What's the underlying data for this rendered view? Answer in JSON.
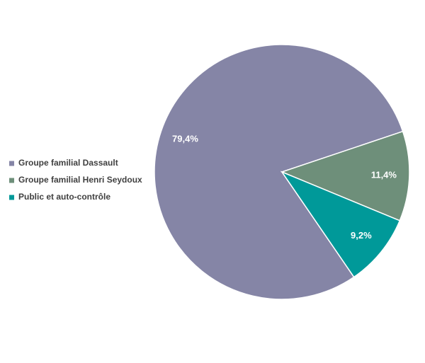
{
  "chart_data": {
    "type": "pie",
    "categories": [
      "Groupe familial Dassault",
      "Groupe familial Henri Seydoux",
      "Public et auto-contrôle"
    ],
    "values": [
      79.4,
      11.4,
      9.2
    ],
    "value_labels": [
      "79,4%",
      "11,4%",
      "9,2%"
    ],
    "colors": [
      "#8585a6",
      "#6e8f7a",
      "#009999"
    ],
    "legend": "left"
  }
}
